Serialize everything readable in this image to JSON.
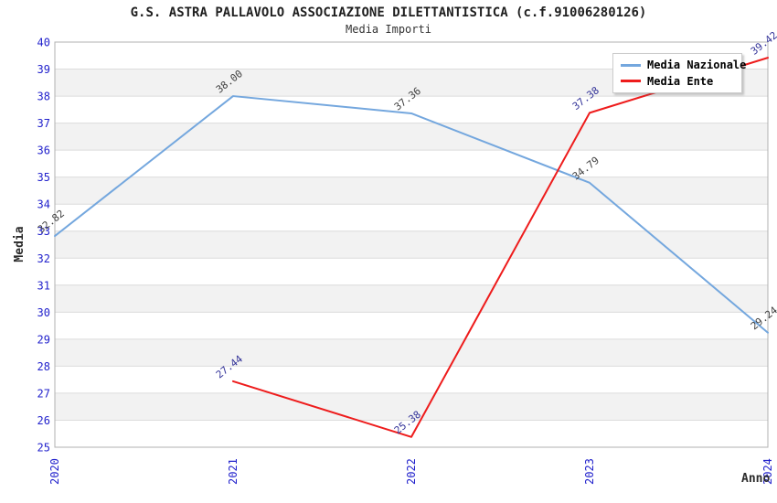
{
  "chart_data": {
    "type": "line",
    "title": "G.S. ASTRA PALLAVOLO ASSOCIAZIONE DILETTANTISTICA (c.f.91006280126)",
    "subtitle": "Media Importi",
    "xlabel": "Anno",
    "ylabel": "Media",
    "x": [
      2020,
      2021,
      2022,
      2023,
      2024
    ],
    "ylim": [
      25,
      40
    ],
    "y_tick_step": 1,
    "grid": true,
    "legend_position": "top-right",
    "series": [
      {
        "name": "Media Nazionale",
        "color": "#74a7de",
        "label_color": "#404040",
        "values": [
          32.82,
          38.0,
          37.36,
          34.79,
          29.24
        ]
      },
      {
        "name": "Media Ente",
        "color": "#ee1c1c",
        "label_color": "#333399",
        "values": [
          null,
          27.44,
          25.38,
          37.38,
          39.42
        ]
      }
    ],
    "styles": {
      "band_colors": [
        "#ffffff",
        "#f2f2f2"
      ],
      "gridline_color": "#dcdcdc",
      "border_color": "#b0b0b0",
      "tick_label_color": "#2222cc"
    }
  }
}
